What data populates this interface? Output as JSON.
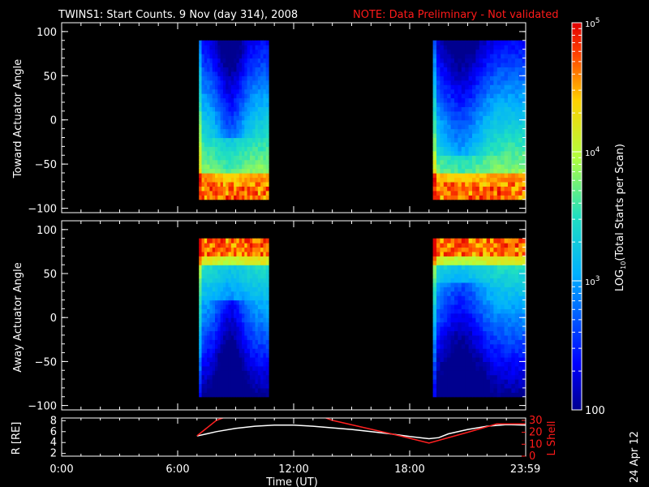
{
  "header": {
    "title": "TWINS1: Start Counts.  9 Nov (day 314), 2008",
    "note": "NOTE: Data Preliminary - Not validated"
  },
  "footer": {
    "date_stamp": "24 Apr 12"
  },
  "colors": {
    "note": "#ff1a1a",
    "lshell": "#ff2020",
    "radius": "#ffffff"
  },
  "chart_data": [
    {
      "type": "heatmap",
      "panel": "toward",
      "ylabel": "Toward Actuator Angle",
      "ylim": [
        -105,
        110
      ],
      "yticks": [
        100,
        50,
        0,
        -50,
        -100
      ],
      "xlim": [
        0,
        24
      ],
      "data_blocks": [
        {
          "x_start": 7.1,
          "x_end": 10.7,
          "angle_range": [
            -90,
            90
          ]
        },
        {
          "x_start": 19.2,
          "x_end": 24.0,
          "angle_range": [
            -90,
            90
          ]
        }
      ],
      "grid": false
    },
    {
      "type": "heatmap",
      "panel": "away",
      "ylabel": "Away Actuator Angle",
      "ylim": [
        -105,
        110
      ],
      "yticks": [
        100,
        50,
        0,
        -50,
        -100
      ],
      "xlim": [
        0,
        24
      ],
      "data_blocks": [
        {
          "x_start": 7.1,
          "x_end": 10.7,
          "angle_range": [
            -90,
            90
          ]
        },
        {
          "x_start": 19.2,
          "x_end": 24.0,
          "angle_range": [
            -90,
            90
          ]
        }
      ],
      "grid": false
    },
    {
      "type": "line",
      "panel": "orbit",
      "xlabel": "Time (UT)",
      "xticks": [
        {
          "value": 0,
          "label": "0:00"
        },
        {
          "value": 6,
          "label": "6:00"
        },
        {
          "value": 12,
          "label": "12:00"
        },
        {
          "value": 18,
          "label": "18:00"
        },
        {
          "value": 23.983,
          "label": "23:59"
        }
      ],
      "xlim": [
        0,
        24
      ],
      "ylabel_left": "R [RE]",
      "ylim_left": [
        1.5,
        8.5
      ],
      "yticks_left": [
        2,
        4,
        6,
        8
      ],
      "ylabel_right": "L Shell",
      "ylim_right": [
        0,
        32
      ],
      "yticks_right": [
        0,
        10,
        20,
        30
      ],
      "series": [
        {
          "axis": "left",
          "color": "#ffffff",
          "x": [
            7.0,
            8.0,
            9.0,
            10.0,
            11.0,
            12.0,
            13.0,
            14.0,
            15.0,
            16.0,
            17.0,
            18.0,
            19.0,
            19.5,
            20.0,
            21.0,
            22.0,
            23.0,
            24.0
          ],
          "y": [
            5.2,
            6.0,
            6.6,
            7.0,
            7.2,
            7.2,
            7.0,
            6.7,
            6.4,
            6.0,
            5.6,
            5.1,
            4.7,
            4.9,
            5.6,
            6.4,
            7.0,
            7.3,
            7.2
          ]
        },
        {
          "axis": "right",
          "color": "#ff2020",
          "x": [
            7.0,
            8.0,
            8.5,
            13.5,
            14.0,
            17.5,
            19.0,
            21.0,
            22.5,
            24.0
          ],
          "y": [
            17,
            30,
            33,
            33,
            30,
            17,
            11,
            20,
            27,
            27
          ]
        }
      ]
    }
  ],
  "colorbar": {
    "label_prefix": "LOG",
    "label_sub": "10",
    "label_suffix": "(Total Starts per Scan)",
    "ticks": [
      {
        "base": "10",
        "exp": "5"
      },
      {
        "base": "10",
        "exp": "4"
      },
      {
        "base": "10",
        "exp": "3"
      },
      {
        "text": "100"
      }
    ],
    "range_log": [
      2,
      5
    ]
  }
}
